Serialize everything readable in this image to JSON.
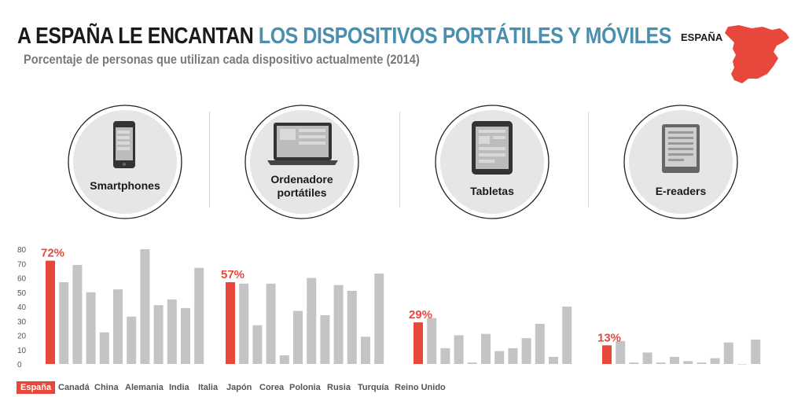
{
  "header": {
    "title_part1": "A ESPAÑA LE ENCANTAN",
    "title_part2": "LOS DISPOSITIVOS PORTÁTILES Y MÓVILES",
    "subtitle": "Porcentaje de personas que utilizan cada dispositivo actualmente (2014)",
    "country": "ESPAÑA",
    "map_icon": "spain-map-icon"
  },
  "devices": [
    {
      "label_line1": "Smartphones",
      "label_line2": "",
      "icon": "smartphone-icon"
    },
    {
      "label_line1": "Ordenadore",
      "label_line2": "portátiles",
      "icon": "laptop-icon"
    },
    {
      "label_line1": "Tabletas",
      "label_line2": "",
      "icon": "tablet-icon"
    },
    {
      "label_line1": "E-readers",
      "label_line2": "",
      "icon": "ereader-icon"
    }
  ],
  "colors": {
    "highlight": "#e8483b",
    "bar": "#c4c4c4",
    "blue_accent": "#4a8fb0",
    "circle_fill": "#e6e6e6"
  },
  "chart_data": {
    "type": "bar",
    "yticks": [
      0,
      10,
      20,
      30,
      40,
      50,
      60,
      70,
      80
    ],
    "ylim": [
      0,
      80
    ],
    "categories": [
      "España",
      "Canadá",
      "China",
      "Alemania",
      "India",
      "Italia",
      "Japón",
      "Corea",
      "Polonia",
      "Rusia",
      "Turquía",
      "Reino Unido"
    ],
    "highlight_index": 0,
    "groups": [
      {
        "device": "Smartphones",
        "label": "72%",
        "values": [
          72,
          57,
          69,
          50,
          22,
          52,
          33,
          80,
          41,
          45,
          39,
          67
        ]
      },
      {
        "device": "Ordenadore portátiles",
        "label": "57%",
        "values": [
          57,
          56,
          27,
          56,
          6,
          37,
          60,
          34,
          55,
          51,
          19,
          63
        ]
      },
      {
        "device": "Tabletas",
        "label": "29%",
        "values": [
          29,
          32,
          11,
          20,
          1,
          21,
          9,
          11,
          18,
          28,
          5,
          40
        ]
      },
      {
        "device": "E-readers",
        "label": "13%",
        "values": [
          13,
          16,
          1,
          8,
          1,
          5,
          2,
          1,
          4,
          15,
          0,
          17
        ]
      }
    ]
  }
}
